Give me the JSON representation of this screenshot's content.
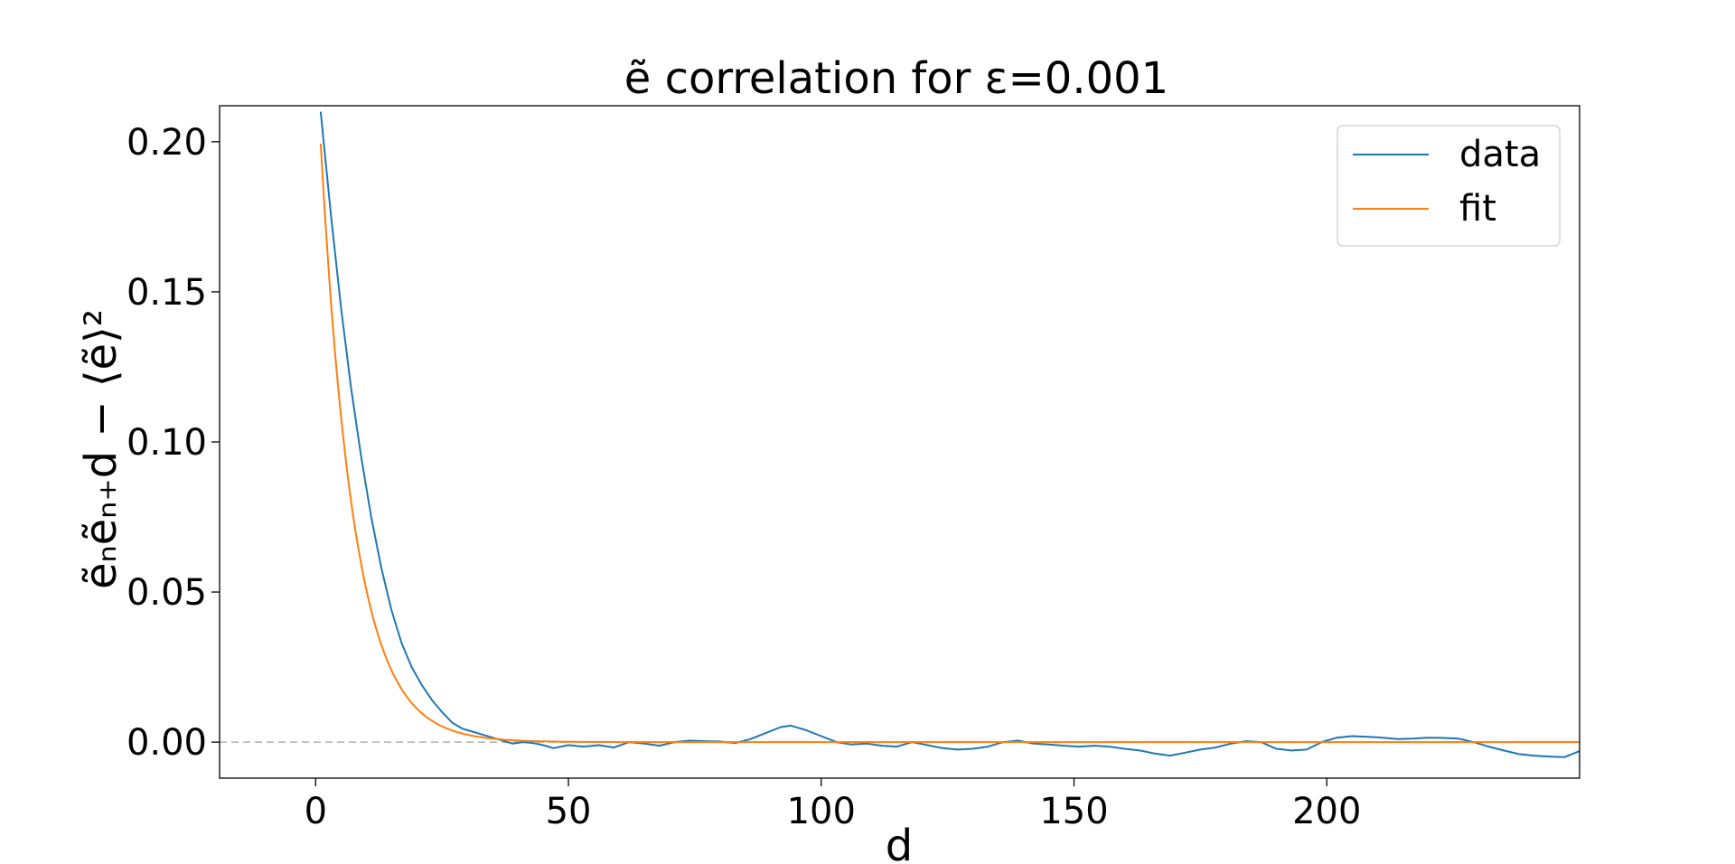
{
  "chart_data": {
    "type": "line",
    "title": "ẽ correlation for ε=0.001",
    "xlabel": "d",
    "ylabel": "ẽₙẽₙ₊d − ⟨ẽ⟩²",
    "xlim": [
      -19,
      250
    ],
    "ylim": [
      -0.012,
      0.212
    ],
    "xticks": [
      0,
      50,
      100,
      150,
      200
    ],
    "yticks": [
      0.0,
      0.05,
      0.1,
      0.15,
      0.2
    ],
    "xtick_labels": [
      "0",
      "50",
      "100",
      "150",
      "200"
    ],
    "ytick_labels": [
      "0.00",
      "0.05",
      "0.10",
      "0.15",
      "0.20"
    ],
    "legend": {
      "position": "top-right",
      "entries": [
        "data",
        "fit"
      ]
    },
    "reference_line": {
      "y": 0,
      "style": "dashed",
      "color": "#b0b0b0"
    },
    "series": [
      {
        "name": "data",
        "color": "#1f77b4",
        "x": [
          1,
          3,
          5,
          7,
          9,
          11,
          13,
          15,
          17,
          19,
          21,
          23,
          25,
          27,
          29,
          31,
          33,
          35,
          37,
          39,
          41,
          43,
          45,
          47,
          50,
          53,
          56,
          59,
          62,
          65,
          68,
          71,
          74,
          77,
          80,
          83,
          86,
          89,
          92,
          94,
          97,
          100,
          103,
          106,
          109,
          112,
          115,
          118,
          121,
          124,
          127,
          130,
          133,
          136,
          139,
          142,
          145,
          148,
          151,
          154,
          157,
          160,
          163,
          166,
          169,
          172,
          175,
          178,
          181,
          184,
          187,
          190,
          193,
          196,
          199,
          202,
          205,
          208,
          211,
          214,
          217,
          220,
          223,
          226,
          229,
          232,
          235,
          238,
          241,
          244,
          247,
          250
        ],
        "y": [
          0.21,
          0.176,
          0.145,
          0.118,
          0.095,
          0.075,
          0.058,
          0.044,
          0.033,
          0.025,
          0.019,
          0.014,
          0.01,
          0.0065,
          0.0045,
          0.0035,
          0.0025,
          0.0015,
          0.0005,
          -0.0005,
          0.0,
          -0.0003,
          -0.001,
          -0.002,
          -0.001,
          -0.0015,
          -0.001,
          -0.0018,
          0.0,
          -0.0005,
          -0.0012,
          0.0,
          0.0005,
          0.0003,
          0.0002,
          -0.0003,
          0.001,
          0.003,
          0.005,
          0.0055,
          0.004,
          0.002,
          0.0,
          -0.0008,
          -0.0005,
          -0.0012,
          -0.0015,
          0.0,
          -0.001,
          -0.002,
          -0.0025,
          -0.0022,
          -0.0015,
          0.0,
          0.0005,
          -0.0005,
          -0.0008,
          -0.0012,
          -0.0015,
          -0.0012,
          -0.0015,
          -0.0022,
          -0.0028,
          -0.0038,
          -0.0045,
          -0.0035,
          -0.0025,
          -0.0018,
          -0.0005,
          0.0003,
          0.0,
          -0.0022,
          -0.0028,
          -0.0025,
          0.0,
          0.0015,
          0.002,
          0.0018,
          0.0015,
          0.001,
          0.0012,
          0.0015,
          0.0014,
          0.0012,
          0.0,
          -0.0015,
          -0.0028,
          -0.004,
          -0.0045,
          -0.0048,
          -0.005,
          -0.003
        ]
      },
      {
        "name": "fit",
        "color": "#ff7f0e",
        "function": "a*exp(-d/tau)",
        "a": 0.232,
        "tau": 6.6,
        "x_range": [
          1,
          250
        ]
      }
    ]
  }
}
